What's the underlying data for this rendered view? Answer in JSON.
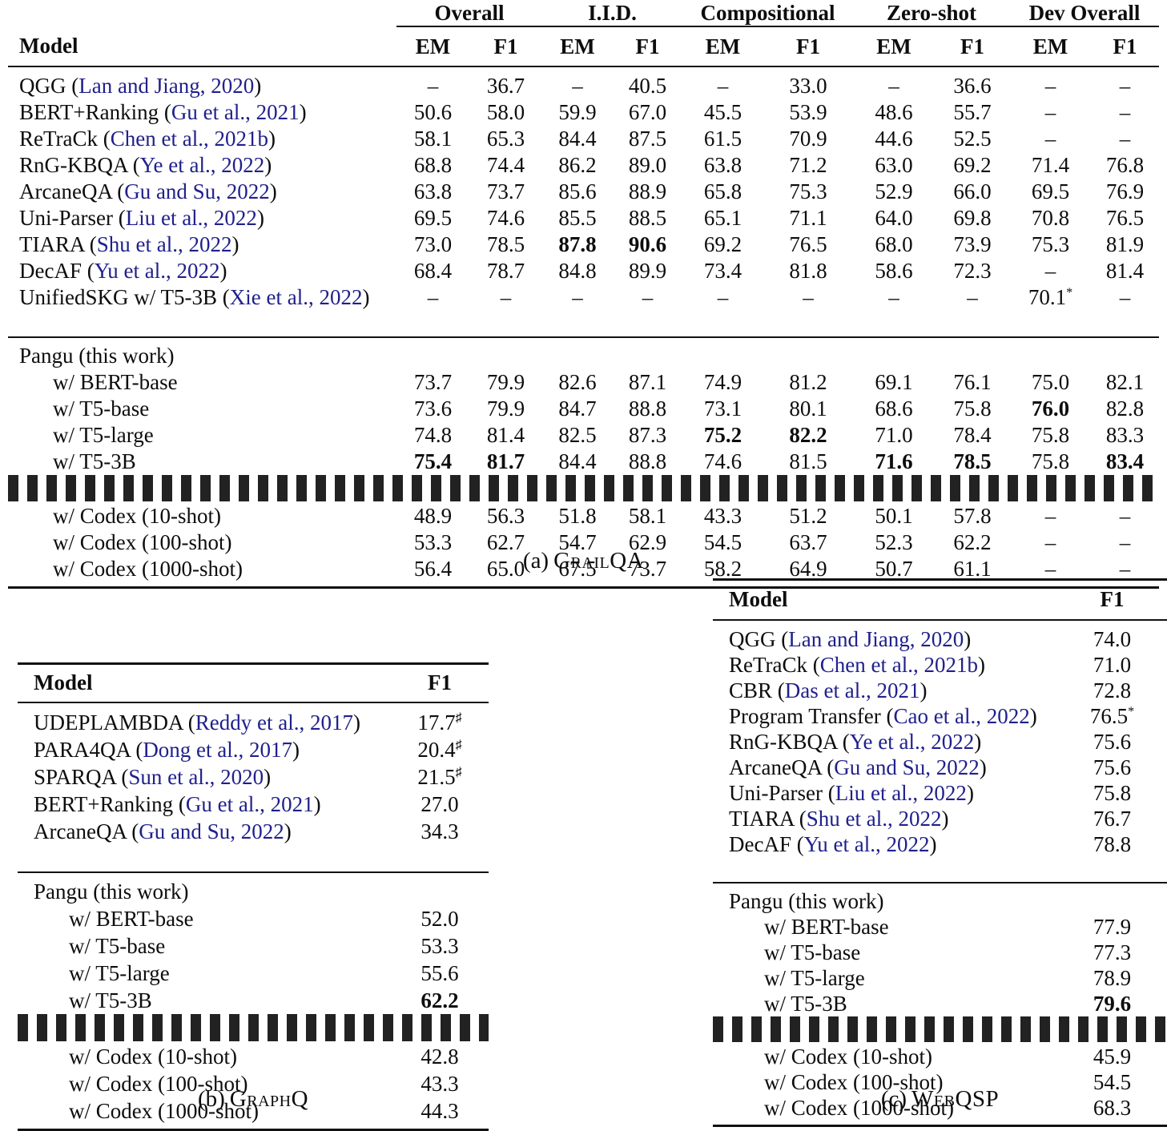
{
  "colors": {
    "citation": "#20208c",
    "text": "#0d0d0d",
    "rule": "#111111"
  },
  "grailqa": {
    "caption": {
      "index": "(a)",
      "name": "GrailQA"
    },
    "model_header": "Model",
    "groups": [
      "Overall",
      "I.I.D.",
      "Compositional",
      "Zero-shot",
      "Dev Overall"
    ],
    "subheaders": [
      "EM",
      "F1",
      "EM",
      "F1",
      "EM",
      "F1",
      "EM",
      "F1",
      "EM",
      "F1"
    ],
    "rows": [
      {
        "model": "QGG",
        "cite": "Lan and Jiang, 2020",
        "values": [
          "–",
          "36.7",
          "–",
          "40.5",
          "–",
          "33.0",
          "–",
          "36.6",
          "–",
          "–"
        ]
      },
      {
        "model": "BERT+Ranking",
        "cite": "Gu et al., 2021",
        "values": [
          "50.6",
          "58.0",
          "59.9",
          "67.0",
          "45.5",
          "53.9",
          "48.6",
          "55.7",
          "–",
          "–"
        ]
      },
      {
        "model": "ReTraCk",
        "cite": "Chen et al., 2021b",
        "values": [
          "58.1",
          "65.3",
          "84.4",
          "87.5",
          "61.5",
          "70.9",
          "44.6",
          "52.5",
          "–",
          "–"
        ]
      },
      {
        "model": "RnG-KBQA",
        "cite": "Ye et al., 2022",
        "values": [
          "68.8",
          "74.4",
          "86.2",
          "89.0",
          "63.8",
          "71.2",
          "63.0",
          "69.2",
          "71.4",
          "76.8"
        ]
      },
      {
        "model": "ArcaneQA",
        "cite": "Gu and Su, 2022",
        "values": [
          "63.8",
          "73.7",
          "85.6",
          "88.9",
          "65.8",
          "75.3",
          "52.9",
          "66.0",
          "69.5",
          "76.9"
        ]
      },
      {
        "model": "Uni-Parser",
        "cite": "Liu et al., 2022",
        "values": [
          "69.5",
          "74.6",
          "85.5",
          "88.5",
          "65.1",
          "71.1",
          "64.0",
          "69.8",
          "70.8",
          "76.5"
        ]
      },
      {
        "model": "TIARA",
        "cite": "Shu et al., 2022",
        "values": [
          "73.0",
          "78.5",
          {
            "v": "87.8",
            "b": true
          },
          {
            "v": "90.6",
            "b": true
          },
          "69.2",
          "76.5",
          "68.0",
          "73.9",
          "75.3",
          "81.9"
        ]
      },
      {
        "model": "DecAF",
        "cite": "Yu et al., 2022",
        "values": [
          "68.4",
          "78.7",
          "84.8",
          "89.9",
          "73.4",
          "81.8",
          "58.6",
          "72.3",
          "–",
          "81.4"
        ]
      },
      {
        "model": "UnifiedSKG w/ T5-3B",
        "cite": "Xie et al., 2022",
        "values": [
          "–",
          "–",
          "–",
          "–",
          "–",
          "–",
          "–",
          "–",
          {
            "v": "70.1",
            "sup": "*"
          },
          "–"
        ]
      },
      {
        "model": "Pangu (this work)",
        "sep_before": "midrule",
        "values": []
      },
      {
        "model": "w/ BERT-base",
        "indent": true,
        "values": [
          "73.7",
          "79.9",
          "82.6",
          "87.1",
          "74.9",
          "81.2",
          "69.1",
          "76.1",
          "75.0",
          "82.1"
        ]
      },
      {
        "model": "w/ T5-base",
        "indent": true,
        "values": [
          "73.6",
          "79.9",
          "84.7",
          "88.8",
          "73.1",
          "80.1",
          "68.6",
          "75.8",
          {
            "v": "76.0",
            "b": true
          },
          "82.8"
        ]
      },
      {
        "model": "w/ T5-large",
        "indent": true,
        "values": [
          "74.8",
          "81.4",
          "82.5",
          "87.3",
          {
            "v": "75.2",
            "b": true
          },
          {
            "v": "82.2",
            "b": true
          },
          "71.0",
          "78.4",
          "75.8",
          "83.3"
        ]
      },
      {
        "model": "w/ T5-3B",
        "indent": true,
        "values": [
          {
            "v": "75.4",
            "b": true
          },
          {
            "v": "81.7",
            "b": true
          },
          "84.4",
          "88.8",
          "74.6",
          "81.5",
          {
            "v": "71.6",
            "b": true
          },
          {
            "v": "78.5",
            "b": true
          },
          "75.8",
          {
            "v": "83.4",
            "b": true
          }
        ]
      },
      {
        "model": "w/ Codex (10-shot)",
        "indent": true,
        "sep_before": "dashed",
        "values": [
          "48.9",
          "56.3",
          "51.8",
          "58.1",
          "43.3",
          "51.2",
          "50.1",
          "57.8",
          "–",
          "–"
        ]
      },
      {
        "model": "w/ Codex (100-shot)",
        "indent": true,
        "values": [
          "53.3",
          "62.7",
          "54.7",
          "62.9",
          "54.5",
          "63.7",
          "52.3",
          "62.2",
          "–",
          "–"
        ]
      },
      {
        "model": "w/ Codex (1000-shot)",
        "indent": true,
        "values": [
          "56.4",
          "65.0",
          "67.5",
          "73.7",
          "58.2",
          "64.9",
          "50.7",
          "61.1",
          "–",
          "–"
        ]
      }
    ]
  },
  "graphq": {
    "caption": {
      "index": "(b)",
      "name": "GraphQ"
    },
    "model_header": "Model",
    "subheaders": [
      "F1"
    ],
    "rows": [
      {
        "model": "UDEPLAMBDA",
        "cite": "Reddy et al., 2017",
        "values": [
          {
            "v": "17.7",
            "sup": "♯"
          }
        ]
      },
      {
        "model": "PARA4QA",
        "cite": "Dong et al., 2017",
        "values": [
          {
            "v": "20.4",
            "sup": "♯"
          }
        ]
      },
      {
        "model": "SPARQA",
        "cite": "Sun et al., 2020",
        "values": [
          {
            "v": "21.5",
            "sup": "♯"
          }
        ]
      },
      {
        "model": "BERT+Ranking",
        "cite": "Gu et al., 2021",
        "values": [
          "27.0"
        ]
      },
      {
        "model": "ArcaneQA",
        "cite": "Gu and Su, 2022",
        "values": [
          "34.3"
        ]
      },
      {
        "model": "Pangu (this work)",
        "sep_before": "midrule",
        "values": []
      },
      {
        "model": "w/ BERT-base",
        "indent": true,
        "values": [
          "52.0"
        ]
      },
      {
        "model": "w/ T5-base",
        "indent": true,
        "values": [
          "53.3"
        ]
      },
      {
        "model": "w/ T5-large",
        "indent": true,
        "values": [
          "55.6"
        ]
      },
      {
        "model": "w/ T5-3B",
        "indent": true,
        "values": [
          {
            "v": "62.2",
            "b": true
          }
        ]
      },
      {
        "model": "w/ Codex (10-shot)",
        "indent": true,
        "sep_before": "dashed",
        "values": [
          "42.8"
        ]
      },
      {
        "model": "w/ Codex (100-shot)",
        "indent": true,
        "values": [
          "43.3"
        ]
      },
      {
        "model": "w/ Codex (1000-shot)",
        "indent": true,
        "values": [
          "44.3"
        ]
      }
    ]
  },
  "webqsp": {
    "caption": {
      "index": "(c)",
      "name": "WebQSP"
    },
    "model_header": "Model",
    "subheaders": [
      "F1"
    ],
    "rows": [
      {
        "model": "QGG",
        "cite": "Lan and Jiang, 2020",
        "values": [
          "74.0"
        ]
      },
      {
        "model": "ReTraCk",
        "cite": "Chen et al., 2021b",
        "values": [
          "71.0"
        ]
      },
      {
        "model": "CBR",
        "cite": "Das et al., 2021",
        "values": [
          "72.8"
        ]
      },
      {
        "model": "Program Transfer",
        "cite": "Cao et al., 2022",
        "values": [
          {
            "v": "76.5",
            "sup": "*"
          }
        ]
      },
      {
        "model": "RnG-KBQA",
        "cite": "Ye et al., 2022",
        "values": [
          "75.6"
        ]
      },
      {
        "model": "ArcaneQA",
        "cite": "Gu and Su, 2022",
        "values": [
          "75.6"
        ]
      },
      {
        "model": "Uni-Parser",
        "cite": "Liu et al., 2022",
        "values": [
          "75.8"
        ]
      },
      {
        "model": "TIARA",
        "cite": "Shu et al., 2022",
        "values": [
          "76.7"
        ]
      },
      {
        "model": "DecAF",
        "cite": "Yu et al., 2022",
        "values": [
          "78.8"
        ]
      },
      {
        "model": "Pangu (this work)",
        "sep_before": "midrule",
        "values": []
      },
      {
        "model": "w/ BERT-base",
        "indent": true,
        "values": [
          "77.9"
        ]
      },
      {
        "model": "w/ T5-base",
        "indent": true,
        "values": [
          "77.3"
        ]
      },
      {
        "model": "w/ T5-large",
        "indent": true,
        "values": [
          "78.9"
        ]
      },
      {
        "model": "w/ T5-3B",
        "indent": true,
        "values": [
          {
            "v": "79.6",
            "b": true
          }
        ]
      },
      {
        "model": "w/ Codex (10-shot)",
        "indent": true,
        "sep_before": "dashed",
        "values": [
          "45.9"
        ]
      },
      {
        "model": "w/ Codex (100-shot)",
        "indent": true,
        "values": [
          "54.5"
        ]
      },
      {
        "model": "w/ Codex (1000-shot)",
        "indent": true,
        "values": [
          "68.3"
        ]
      }
    ]
  }
}
